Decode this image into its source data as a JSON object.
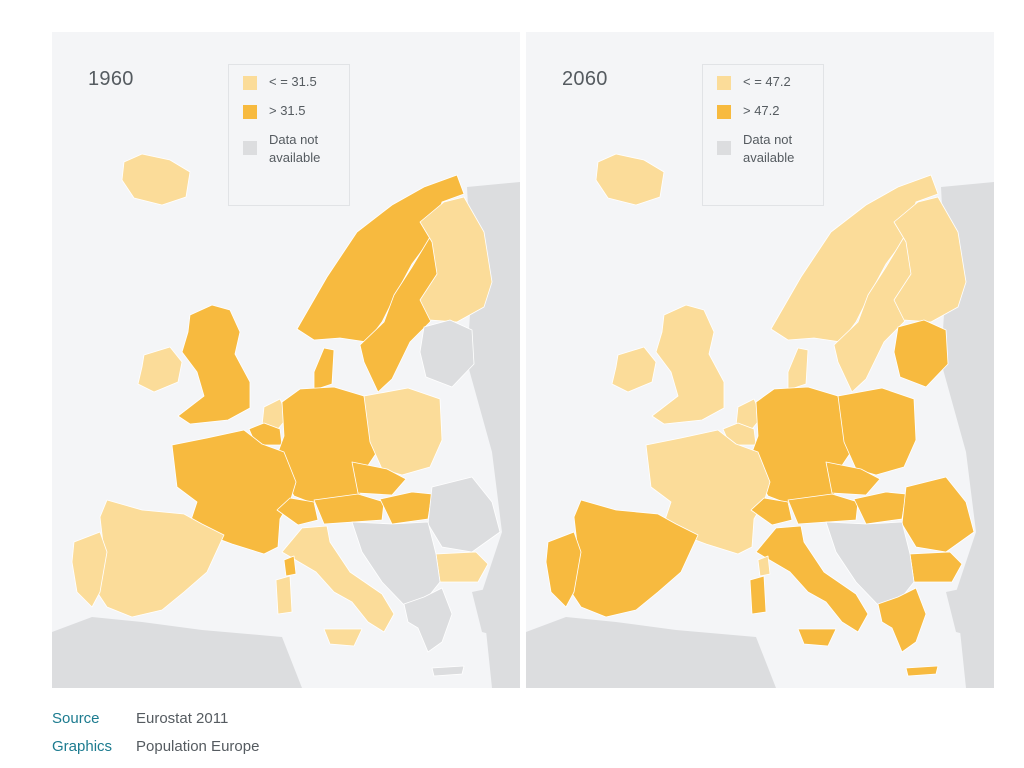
{
  "colors": {
    "below": "#fbdc99",
    "above": "#f7ba3f",
    "not_available": "#dcdddf",
    "background": "#f4f5f7",
    "border": "#ffffff"
  },
  "maps": [
    {
      "year": "1960",
      "legend": [
        {
          "label": "< = 31.5",
          "category": "below"
        },
        {
          "label": "> 31.5",
          "category": "above"
        },
        {
          "label": "Data not available",
          "category": "not_available"
        }
      ],
      "regions": {
        "iceland": "below",
        "ireland": "below",
        "uk": "above",
        "norway": "above",
        "sweden": "above",
        "finland": "below",
        "denmark": "above",
        "netherlands": "below",
        "belgium": "above",
        "germany": "above",
        "france": "above",
        "switzerland": "above",
        "austria": "above",
        "poland": "below",
        "czech": "above",
        "hungary": "above",
        "spain": "below",
        "portugal": "below",
        "italy": "below",
        "sardinia": "below",
        "corsica": "above",
        "sicily": "below",
        "baltics": "not_available",
        "romania": "not_available",
        "bulgaria": "below",
        "greece": "not_available",
        "balkans": "not_available",
        "crete": "not_available"
      }
    },
    {
      "year": "2060",
      "legend": [
        {
          "label": "< = 47.2",
          "category": "below"
        },
        {
          "label": "> 47.2",
          "category": "above"
        },
        {
          "label": "Data not available",
          "category": "not_available"
        }
      ],
      "regions": {
        "iceland": "below",
        "ireland": "below",
        "uk": "below",
        "norway": "below",
        "sweden": "below",
        "finland": "below",
        "denmark": "below",
        "netherlands": "below",
        "belgium": "below",
        "germany": "above",
        "france": "below",
        "switzerland": "above",
        "austria": "above",
        "poland": "above",
        "czech": "above",
        "hungary": "above",
        "spain": "above",
        "portugal": "above",
        "italy": "above",
        "sardinia": "above",
        "corsica": "below",
        "sicily": "above",
        "baltics": "above",
        "romania": "above",
        "bulgaria": "above",
        "greece": "above",
        "balkans": "not_available",
        "crete": "above"
      }
    }
  ],
  "footer": {
    "source_label": "Source",
    "source_value": "Eurostat 2011",
    "graphics_label": "Graphics",
    "graphics_value": "Population Europe"
  }
}
